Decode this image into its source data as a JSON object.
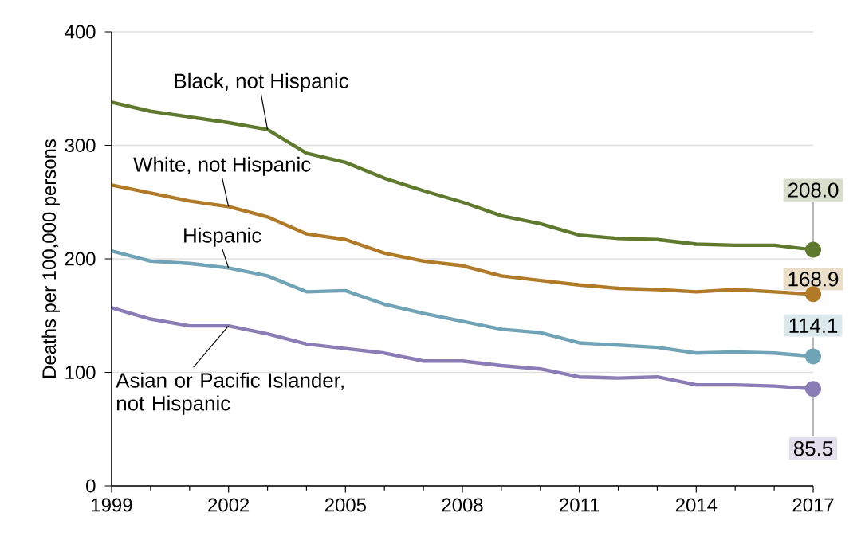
{
  "chart_data": {
    "type": "line",
    "ylabel": "Deaths per 100,000 persons",
    "x": [
      1999,
      2000,
      2001,
      2002,
      2003,
      2004,
      2005,
      2006,
      2007,
      2008,
      2009,
      2010,
      2011,
      2012,
      2013,
      2014,
      2015,
      2016,
      2017
    ],
    "xlim": [
      1999,
      2017
    ],
    "xticks": [
      1999,
      2002,
      2005,
      2008,
      2011,
      2014,
      2017
    ],
    "ylim": [
      0,
      400
    ],
    "yticks": [
      0,
      100,
      200,
      300,
      400
    ],
    "grid": "y",
    "legend": false,
    "marker": "none",
    "line_style": "solid",
    "series": [
      {
        "name": "Black, not Hispanic",
        "color": "#5f7a2e",
        "values": [
          338,
          330,
          325,
          320,
          314,
          293,
          285,
          271,
          260,
          250,
          238,
          231,
          221,
          218,
          217,
          213,
          212,
          212,
          208.0
        ],
        "value_labels": [
          null,
          null,
          null,
          null,
          null,
          null,
          null,
          null,
          null,
          null,
          null,
          null,
          null,
          null,
          null,
          null,
          null,
          null,
          "208.0"
        ]
      },
      {
        "name": "White, not Hispanic",
        "color": "#b07a28",
        "values": [
          265,
          258,
          251,
          246,
          237,
          222,
          217,
          205,
          198,
          194,
          185,
          181,
          177,
          174,
          173,
          171,
          173,
          171,
          168.9
        ],
        "value_labels": [
          null,
          null,
          null,
          null,
          null,
          null,
          null,
          null,
          null,
          null,
          null,
          null,
          null,
          null,
          null,
          null,
          null,
          null,
          "168.9"
        ]
      },
      {
        "name": "Hispanic",
        "color": "#6fa3b5",
        "values": [
          207,
          198,
          196,
          192,
          185,
          171,
          172,
          160,
          152,
          145,
          138,
          135,
          126,
          124,
          122,
          117,
          118,
          117,
          114.1
        ],
        "value_labels": [
          null,
          null,
          null,
          null,
          null,
          null,
          null,
          null,
          null,
          null,
          null,
          null,
          null,
          null,
          null,
          null,
          null,
          null,
          "114.1"
        ]
      },
      {
        "name": "Asian or Pacific Islander, not Hispanic",
        "color": "#8a7cb5",
        "values": [
          157,
          147,
          141,
          141,
          134,
          125,
          121,
          117,
          110,
          110,
          106,
          103,
          96,
          95,
          96,
          89,
          89,
          88,
          85.5
        ],
        "value_labels": [
          null,
          null,
          null,
          null,
          null,
          null,
          null,
          null,
          null,
          null,
          null,
          null,
          null,
          null,
          null,
          null,
          null,
          null,
          "85.5"
        ]
      }
    ]
  }
}
